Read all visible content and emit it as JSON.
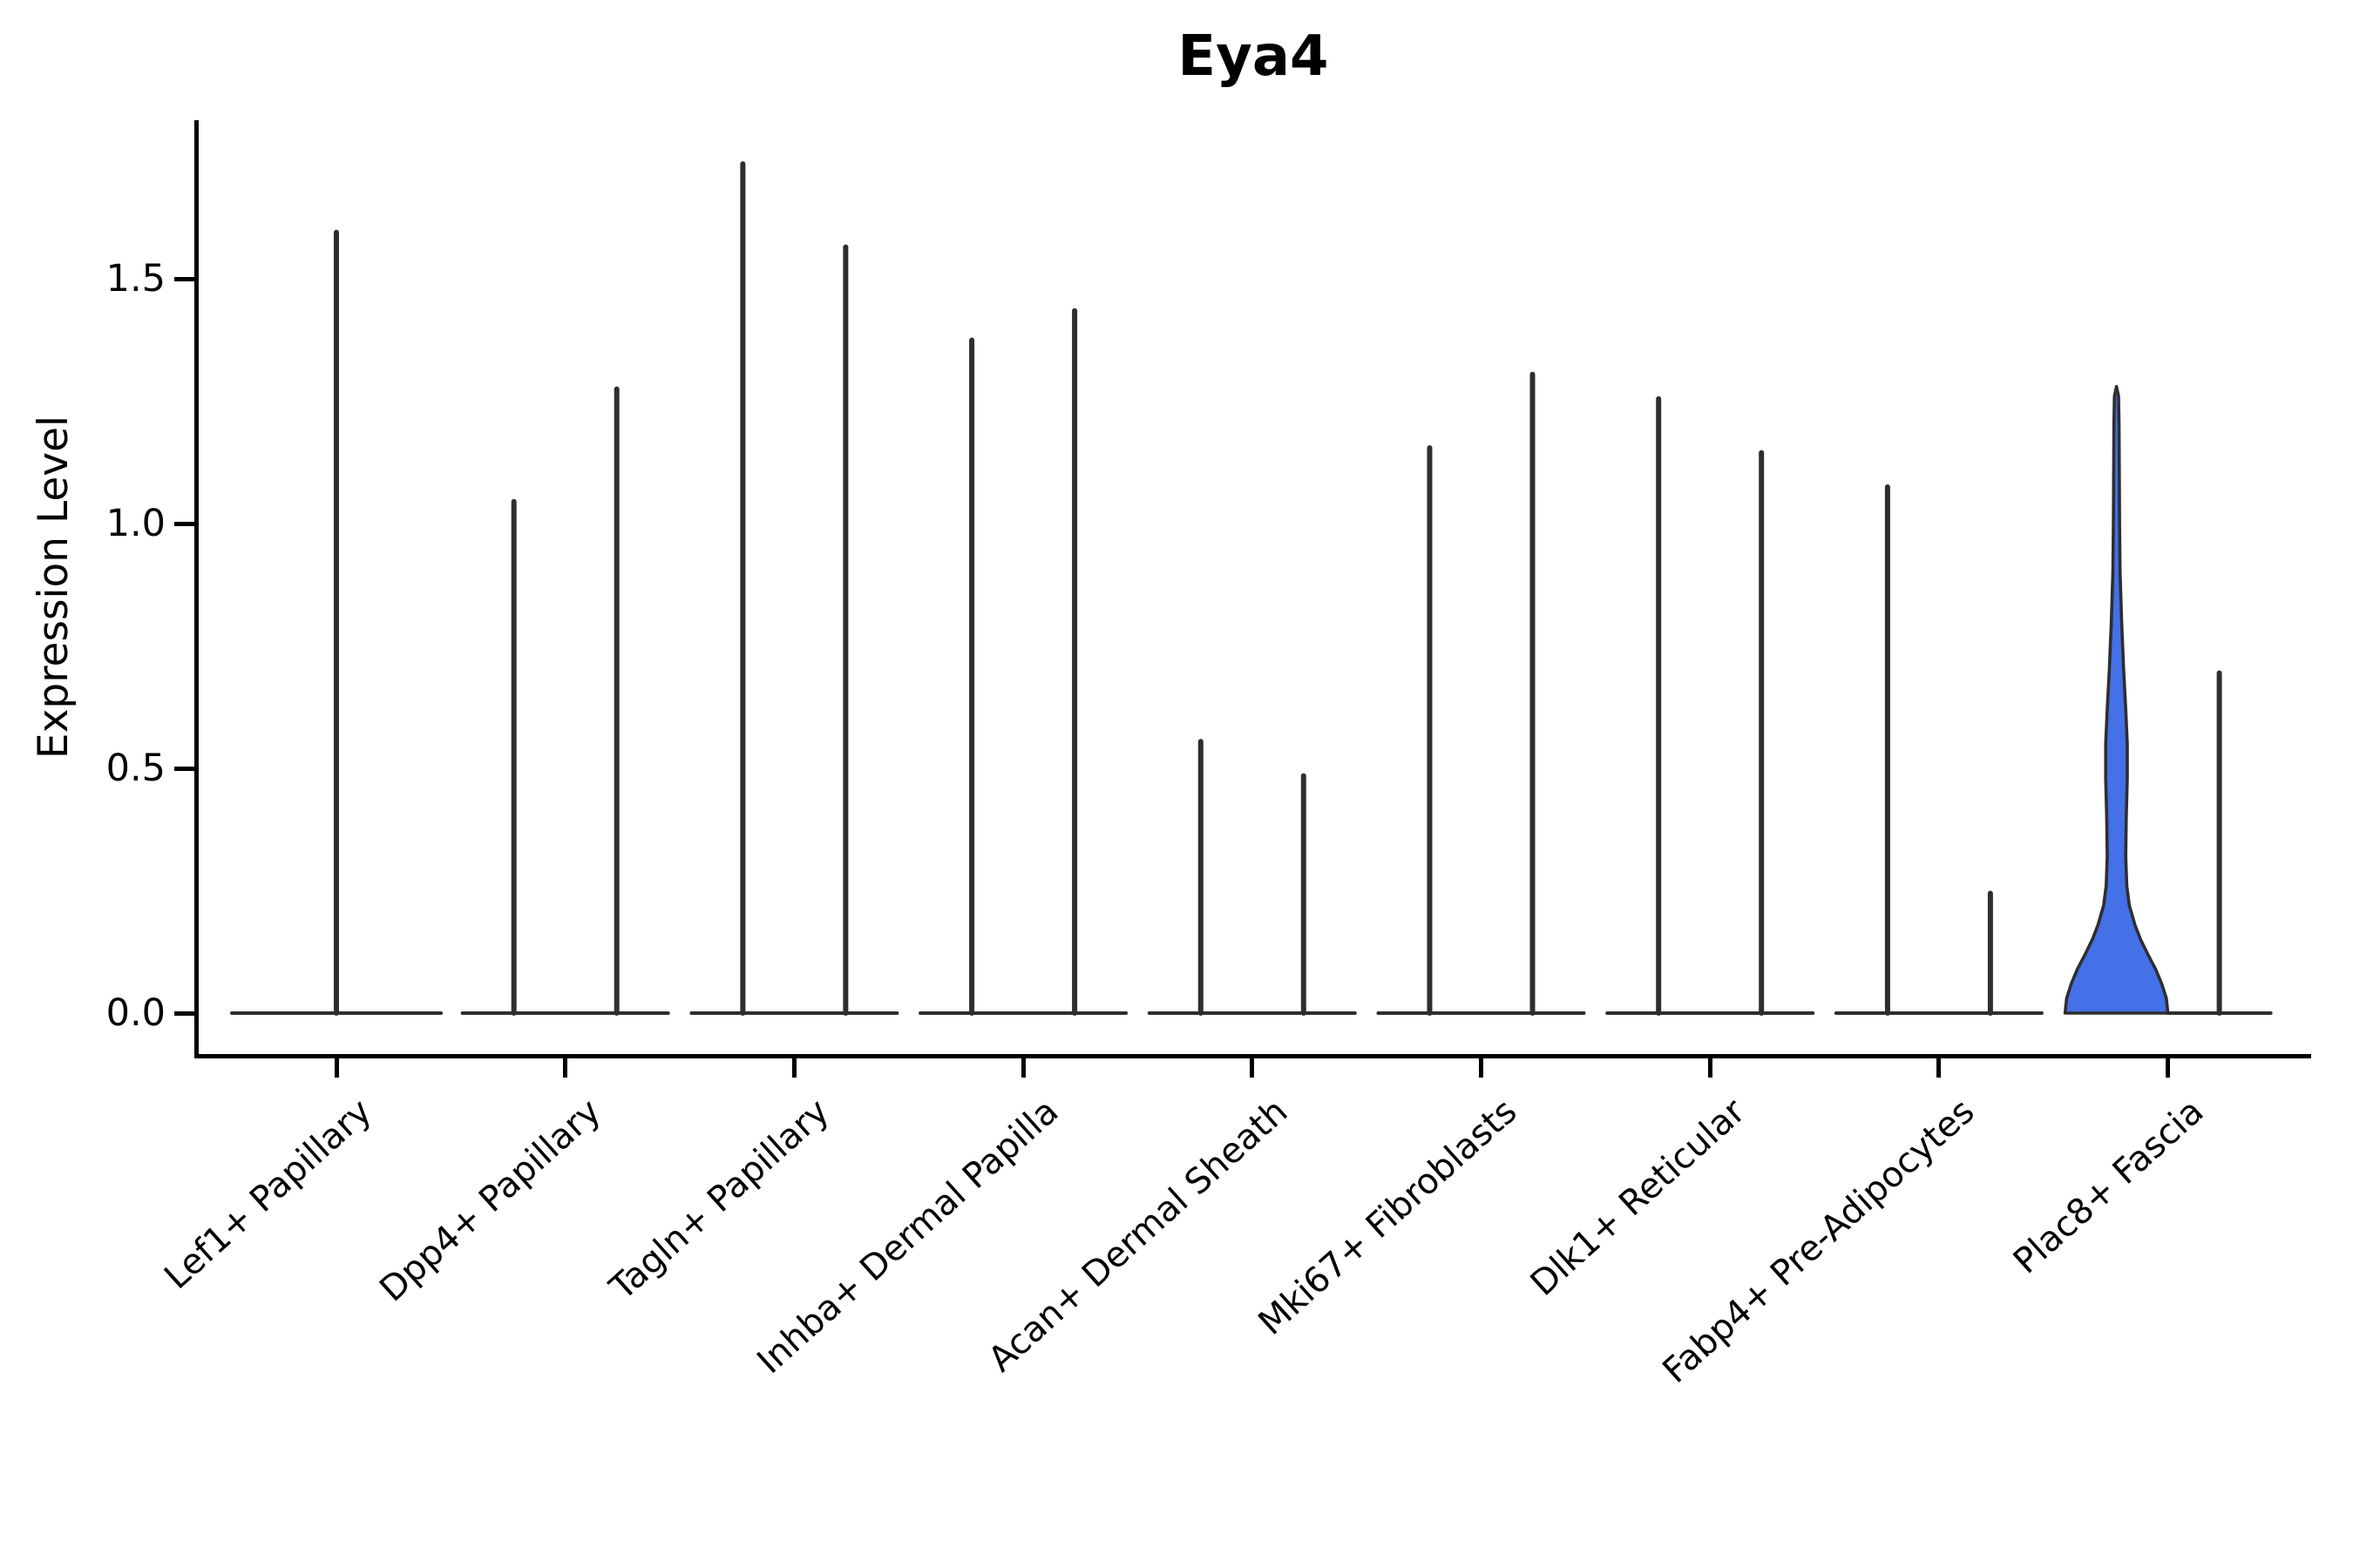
{
  "title": "Eya4",
  "y_axis": {
    "label": "Expression Level",
    "ticks": [
      {
        "label": "1.5",
        "value": 1.5
      },
      {
        "label": "1.0",
        "value": 1.0
      },
      {
        "label": "0.5",
        "value": 0.5
      },
      {
        "label": "0.0",
        "value": 0.0
      }
    ]
  },
  "colors": {
    "violin_outline": "#2e2e2e",
    "highlight_fill": "#4470e8",
    "axis": "#000000",
    "background": "#ffffff"
  },
  "chart_data": {
    "type": "violin",
    "title": "Eya4",
    "xlabel": "",
    "ylabel": "Expression Level",
    "ylim": [
      0,
      1.85
    ],
    "yticks": [
      0.0,
      0.5,
      1.0,
      1.5
    ],
    "grid": false,
    "legend": "none",
    "categories": [
      "Lef1+ Papillary",
      "Dpp4+ Papillary",
      "Tagln+ Papillary",
      "Inhba+ Dermal Papilla",
      "Acan+ Dermal Sheath",
      "Mki67+ Fibroblasts",
      "Dlk1+ Reticular",
      "Fabp4+ Pre-Adipocytes",
      "Plac8+ Fascia"
    ],
    "violins": [
      {
        "category_index": 0,
        "category": "Lef1+ Papillary",
        "group": "single",
        "max_expression": 1.6,
        "filled": false
      },
      {
        "category_index": 1,
        "category": "Dpp4+ Papillary",
        "group": "left",
        "max_expression": 1.05,
        "filled": false
      },
      {
        "category_index": 1,
        "category": "Dpp4+ Papillary",
        "group": "right",
        "max_expression": 1.28,
        "filled": false
      },
      {
        "category_index": 2,
        "category": "Tagln+ Papillary",
        "group": "left",
        "max_expression": 1.74,
        "filled": false
      },
      {
        "category_index": 2,
        "category": "Tagln+ Papillary",
        "group": "right",
        "max_expression": 1.57,
        "filled": false
      },
      {
        "category_index": 3,
        "category": "Inhba+ Dermal Papilla",
        "group": "left",
        "max_expression": 1.38,
        "filled": false
      },
      {
        "category_index": 3,
        "category": "Inhba+ Dermal Papilla",
        "group": "right",
        "max_expression": 1.44,
        "filled": false
      },
      {
        "category_index": 4,
        "category": "Acan+ Dermal Sheath",
        "group": "left",
        "max_expression": 0.56,
        "filled": false
      },
      {
        "category_index": 4,
        "category": "Acan+ Dermal Sheath",
        "group": "right",
        "max_expression": 0.49,
        "filled": false
      },
      {
        "category_index": 5,
        "category": "Mki67+ Fibroblasts",
        "group": "left",
        "max_expression": 1.16,
        "filled": false
      },
      {
        "category_index": 5,
        "category": "Mki67+ Fibroblasts",
        "group": "right",
        "max_expression": 1.31,
        "filled": false
      },
      {
        "category_index": 6,
        "category": "Dlk1+ Reticular",
        "group": "left",
        "max_expression": 1.26,
        "filled": false
      },
      {
        "category_index": 6,
        "category": "Dlk1+ Reticular",
        "group": "right",
        "max_expression": 1.15,
        "filled": false
      },
      {
        "category_index": 7,
        "category": "Fabp4+ Pre-Adipocytes",
        "group": "left",
        "max_expression": 1.08,
        "filled": false
      },
      {
        "category_index": 7,
        "category": "Fabp4+ Pre-Adipocytes",
        "group": "right",
        "max_expression": 0.25,
        "filled": false
      },
      {
        "category_index": 8,
        "category": "Plac8+ Fascia",
        "group": "left",
        "max_expression": 1.28,
        "filled": true,
        "fill_color": "#4470e8",
        "profile": [
          [
            0.0,
            1.0
          ],
          [
            0.03,
            0.97
          ],
          [
            0.06,
            0.88
          ],
          [
            0.09,
            0.76
          ],
          [
            0.12,
            0.61
          ],
          [
            0.15,
            0.47
          ],
          [
            0.18,
            0.36
          ],
          [
            0.22,
            0.25
          ],
          [
            0.26,
            0.2
          ],
          [
            0.32,
            0.18
          ],
          [
            0.4,
            0.19
          ],
          [
            0.48,
            0.21
          ],
          [
            0.55,
            0.21
          ],
          [
            0.62,
            0.18
          ],
          [
            0.7,
            0.14
          ],
          [
            0.8,
            0.1
          ],
          [
            0.9,
            0.07
          ],
          [
            1.0,
            0.06
          ],
          [
            1.1,
            0.055
          ],
          [
            1.2,
            0.05
          ],
          [
            1.26,
            0.04
          ],
          [
            1.28,
            0.0
          ]
        ]
      },
      {
        "category_index": 8,
        "category": "Plac8+ Fascia",
        "group": "right",
        "max_expression": 0.7,
        "filled": false
      }
    ]
  }
}
